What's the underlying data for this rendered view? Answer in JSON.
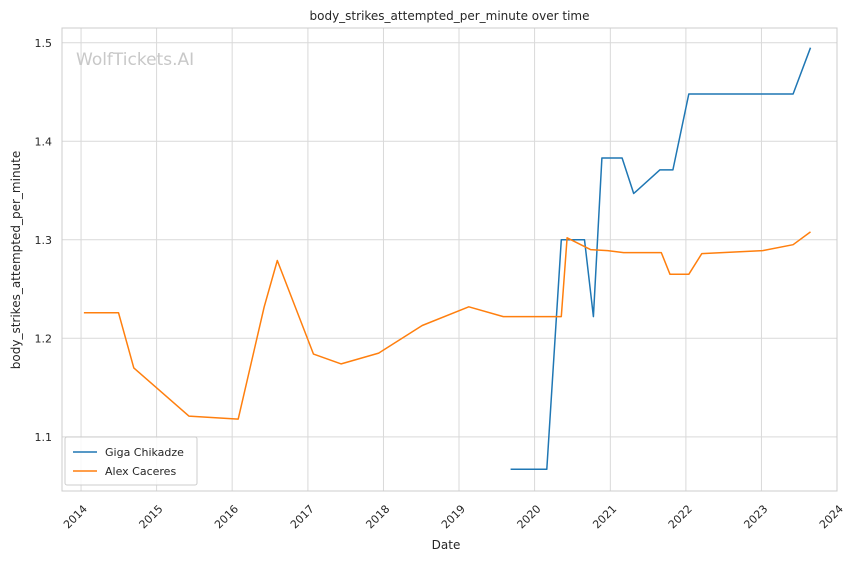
{
  "chart_data": {
    "type": "line",
    "title": "body_strikes_attempted_per_minute over time",
    "xlabel": "Date",
    "ylabel": "body_strikes_attempted_per_minute",
    "watermark": "WolfTickets.AI",
    "xlim": [
      "2013-10-01",
      "2024-01-01"
    ],
    "ylim": [
      1.045,
      1.515
    ],
    "x_ticks": [
      "2014",
      "2015",
      "2016",
      "2017",
      "2018",
      "2019",
      "2020",
      "2021",
      "2022",
      "2023",
      "2024"
    ],
    "y_ticks": [
      "1.1",
      "1.2",
      "1.3",
      "1.4",
      "1.5"
    ],
    "grid": true,
    "legend": "lower-left",
    "series": [
      {
        "name": "Giga Chikadze",
        "color": "#1f77b4",
        "points": [
          [
            "2019-09-07",
            1.067
          ],
          [
            "2020-02-29",
            1.067
          ],
          [
            "2020-05-09",
            1.3
          ],
          [
            "2020-06-06",
            1.3
          ],
          [
            "2020-08-29",
            1.3
          ],
          [
            "2020-10-11",
            1.222
          ],
          [
            "2020-11-21",
            1.383
          ],
          [
            "2021-02-27",
            1.383
          ],
          [
            "2021-04-24",
            1.347
          ],
          [
            "2021-08-28",
            1.371
          ],
          [
            "2021-10-30",
            1.371
          ],
          [
            "2022-01-15",
            1.448
          ],
          [
            "2023-06-03",
            1.448
          ],
          [
            "2023-08-26",
            1.495
          ]
        ]
      },
      {
        "name": "Alex Caceres",
        "color": "#ff7f0e",
        "points": [
          [
            "2014-01-15",
            1.226
          ],
          [
            "2014-07-01",
            1.226
          ],
          [
            "2014-09-13",
            1.17
          ],
          [
            "2015-06-06",
            1.121
          ],
          [
            "2016-01-30",
            1.118
          ],
          [
            "2016-06-04",
            1.232
          ],
          [
            "2016-08-06",
            1.279
          ],
          [
            "2017-01-28",
            1.184
          ],
          [
            "2017-06-11",
            1.174
          ],
          [
            "2017-12-09",
            1.185
          ],
          [
            "2018-07-07",
            1.213
          ],
          [
            "2019-02-17",
            1.232
          ],
          [
            "2019-08-03",
            1.222
          ],
          [
            "2020-05-09",
            1.222
          ],
          [
            "2020-06-06",
            1.302
          ],
          [
            "2020-09-27",
            1.29
          ],
          [
            "2020-12-19",
            1.289
          ],
          [
            "2021-03-06",
            1.287
          ],
          [
            "2021-09-04",
            1.287
          ],
          [
            "2021-10-16",
            1.265
          ],
          [
            "2022-01-15",
            1.265
          ],
          [
            "2022-03-19",
            1.286
          ],
          [
            "2023-01-07",
            1.289
          ],
          [
            "2023-06-03",
            1.295
          ],
          [
            "2023-08-26",
            1.308
          ]
        ]
      }
    ]
  }
}
